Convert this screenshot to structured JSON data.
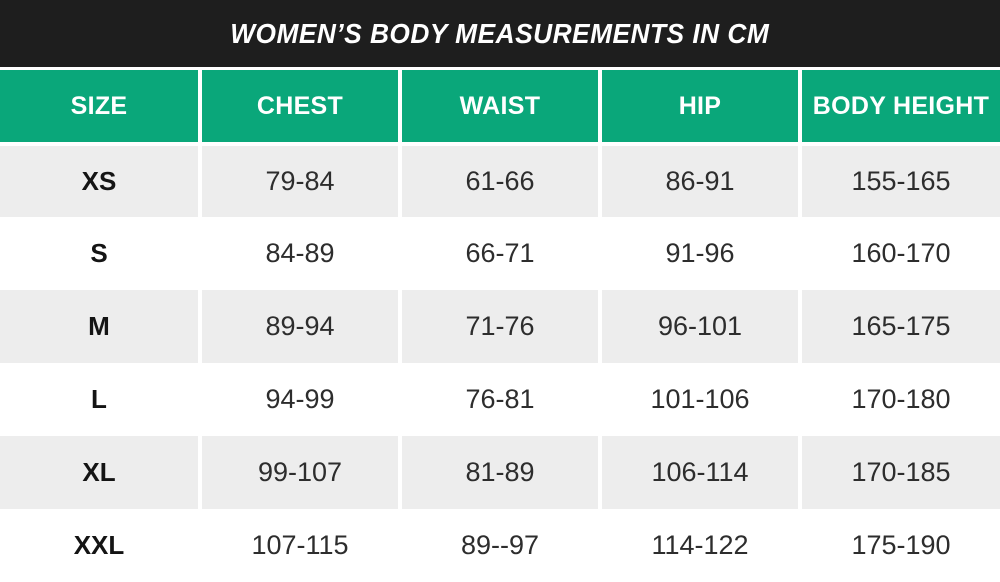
{
  "title_bar": {
    "title": "WOMEN’S BODY MEASUREMENTS IN CM"
  },
  "colors": {
    "title_bar_bg": "#1e1e1e",
    "title_text": "#ffffff",
    "header_bg": "#0aa77a",
    "header_text": "#ffffff",
    "alt_row_bg": "#ededed",
    "row_bg": "#ffffff",
    "divider": "#ffffff",
    "body_text": "#2d2d2d"
  },
  "chart_data": {
    "type": "table",
    "title": "WOMEN’S BODY MEASUREMENTS IN CM",
    "units": "cm",
    "columns": [
      "SIZE",
      "CHEST",
      "WAIST",
      "HIP",
      "BODY HEIGHT"
    ],
    "rows": [
      [
        "XS",
        "79-84",
        "61-66",
        "86-91",
        "155-165"
      ],
      [
        "S",
        "84-89",
        "66-71",
        "91-96",
        "160-170"
      ],
      [
        "M",
        "89-94",
        "71-76",
        "96-101",
        "165-175"
      ],
      [
        "L",
        "94-99",
        "76-81",
        "101-106",
        "170-180"
      ],
      [
        "XL",
        "99-107",
        "81-89",
        "106-114",
        "170-185"
      ],
      [
        "XXL",
        "107-115",
        "89--97",
        "114-122",
        "175-190"
      ]
    ]
  }
}
